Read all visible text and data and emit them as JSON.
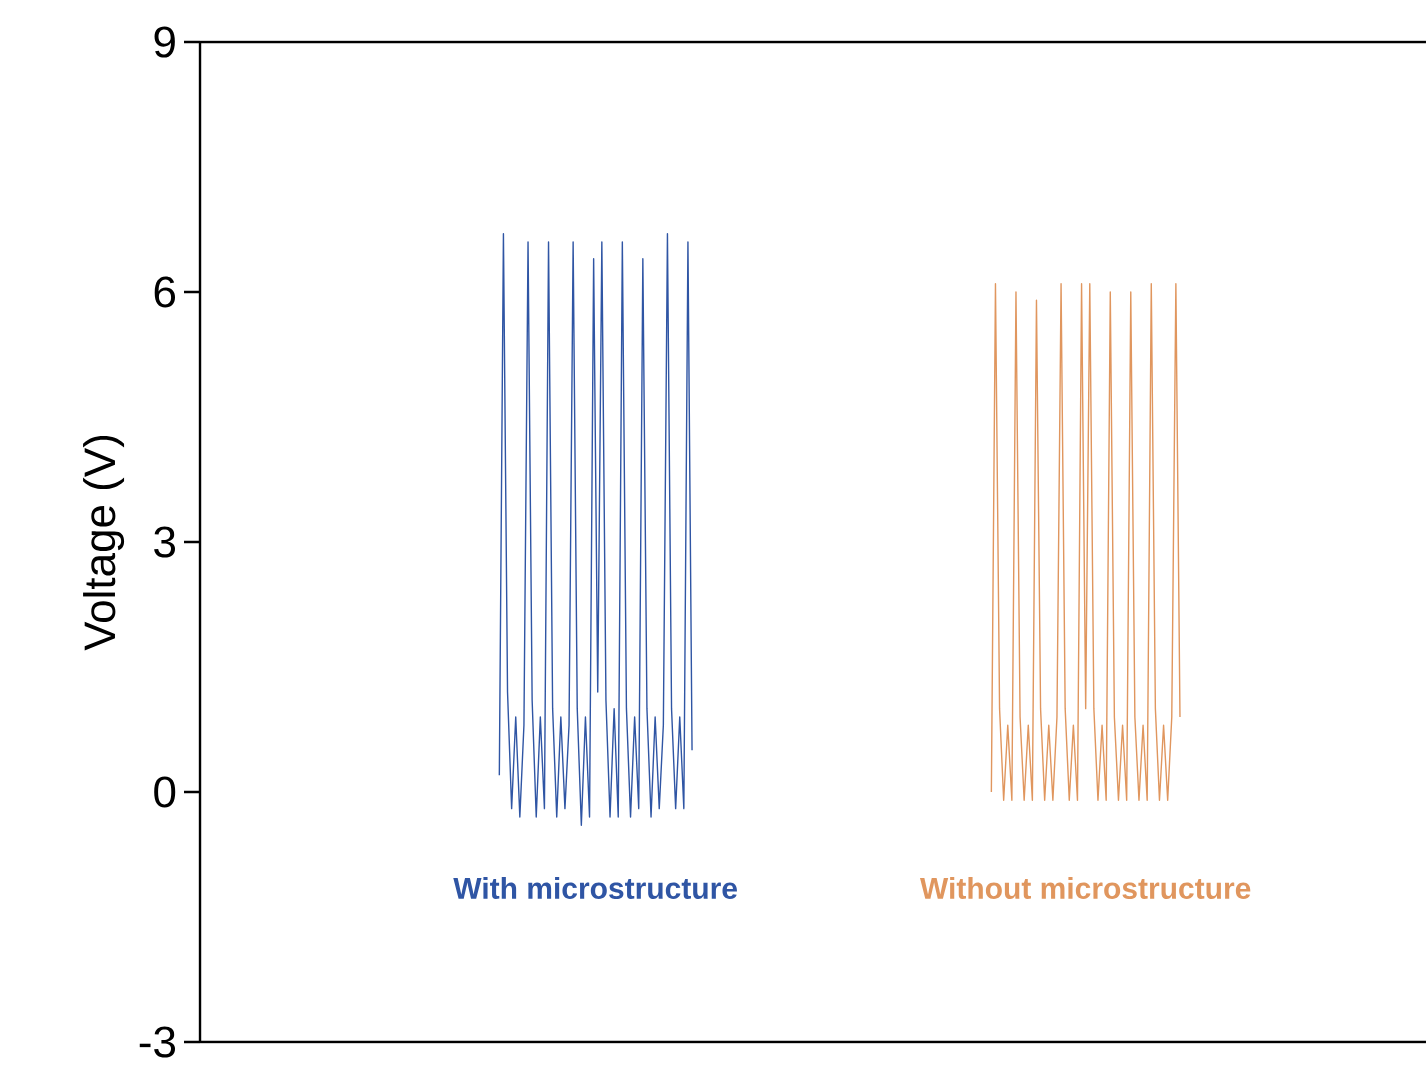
{
  "chart_data": {
    "type": "line",
    "ylabel": "Voltage (V)",
    "ylim": [
      -3,
      9
    ],
    "yticks": [
      -3,
      0,
      3,
      6,
      9
    ],
    "categories": [
      null,
      null,
      null,
      null,
      null,
      null,
      null,
      null,
      null,
      null,
      null,
      null,
      null,
      null,
      null,
      null,
      null,
      null,
      null,
      null,
      null,
      null,
      null,
      null,
      null,
      null,
      null,
      null,
      null,
      null,
      null,
      null,
      null,
      null,
      null,
      null,
      null,
      null,
      null,
      null,
      null,
      null,
      null,
      null,
      null,
      null,
      null,
      null,
      null,
      null,
      null,
      null,
      null,
      null,
      null,
      null,
      null,
      null,
      null,
      null,
      null,
      null,
      null,
      null,
      null,
      null,
      null,
      null,
      null,
      null,
      null,
      null,
      null,
      null,
      null,
      null,
      null,
      null,
      null,
      null,
      null,
      null,
      null,
      null,
      null,
      null,
      null,
      null,
      null,
      null,
      null,
      null,
      null,
      null,
      null,
      null,
      null,
      null,
      null,
      null,
      null,
      null,
      null,
      null,
      null,
      null,
      null,
      null,
      null,
      null,
      null,
      null,
      null,
      null,
      null,
      null,
      null,
      null,
      null,
      null,
      null,
      null,
      null,
      null,
      null,
      null,
      null,
      null,
      null,
      null,
      null,
      null,
      null,
      null,
      null,
      null,
      null,
      null,
      null,
      null,
      null,
      null,
      null,
      null,
      null,
      null,
      null,
      null,
      null,
      null,
      null,
      null,
      null,
      null,
      null,
      null,
      null,
      null,
      null,
      null,
      null,
      null,
      null,
      null,
      null,
      null,
      null,
      null,
      null,
      null,
      null,
      null,
      null,
      null,
      null,
      null,
      null,
      null,
      null,
      null,
      null,
      null,
      null,
      null,
      null,
      null,
      null,
      null,
      null,
      null,
      null,
      null,
      null,
      null,
      null,
      null,
      null,
      null,
      null,
      null,
      null,
      null,
      null,
      null,
      null,
      null,
      null,
      null,
      null,
      null,
      null,
      null,
      null,
      null,
      null,
      null,
      null,
      null,
      null,
      null,
      null,
      null,
      null,
      null,
      null,
      null,
      null,
      null,
      null,
      null,
      null,
      null,
      null,
      null,
      null,
      null,
      null,
      null,
      null,
      null,
      null,
      null,
      null,
      null,
      null,
      null,
      null,
      null,
      null,
      null,
      null,
      null,
      null,
      null,
      null,
      null,
      null,
      null,
      null,
      null,
      null,
      null,
      null,
      null,
      null,
      null,
      null,
      null,
      null,
      null,
      null,
      null,
      null,
      null,
      null,
      null,
      null,
      null,
      null,
      null,
      null,
      null,
      null,
      null,
      null,
      null,
      null,
      null,
      null,
      null,
      null,
      null,
      null,
      null,
      null,
      null,
      null,
      null,
      null,
      null
    ],
    "series": [
      {
        "name": "With microstructure",
        "color": "#2f55a4",
        "values": [
          null,
          null,
          null,
          null,
          null,
          null,
          null,
          null,
          null,
          null,
          null,
          null,
          null,
          null,
          null,
          null,
          null,
          null,
          null,
          null,
          null,
          null,
          null,
          null,
          null,
          null,
          null,
          null,
          null,
          null,
          null,
          null,
          null,
          null,
          null,
          null,
          null,
          null,
          null,
          null,
          null,
          null,
          null,
          null,
          null,
          null,
          null,
          null,
          null,
          null,
          null,
          null,
          null,
          null,
          null,
          null,
          null,
          null,
          null,
          null,
          null,
          null,
          null,
          null,
          null,
          null,
          null,
          null,
          null,
          null,
          null,
          null,
          null,
          0.2,
          6.7,
          1.2,
          -0.2,
          0.9,
          -0.3,
          0.8,
          6.6,
          1.1,
          -0.3,
          0.9,
          -0.2,
          6.6,
          1.0,
          -0.3,
          0.9,
          -0.2,
          0.8,
          6.6,
          1.0,
          -0.4,
          0.9,
          -0.3,
          6.4,
          1.2,
          6.6,
          1.1,
          -0.3,
          1.0,
          -0.3,
          6.6,
          1.0,
          -0.3,
          0.9,
          -0.2,
          6.4,
          1.0,
          -0.3,
          0.9,
          -0.2,
          0.8,
          6.7,
          1.0,
          -0.2,
          0.9,
          -0.2,
          6.6,
          0.5,
          null,
          null,
          null,
          null,
          null,
          null,
          null,
          null,
          null,
          null,
          null,
          null,
          null,
          null,
          null,
          null,
          null,
          null,
          null,
          null,
          null,
          null,
          null,
          null,
          null,
          null,
          null,
          null,
          null,
          null,
          null,
          null,
          null,
          null,
          null,
          null,
          null,
          null,
          null,
          null,
          null,
          null,
          null,
          null,
          null,
          null,
          null,
          null,
          null,
          null,
          null,
          null,
          null,
          null,
          null,
          null,
          null,
          null,
          null,
          null,
          null,
          null,
          null,
          null,
          null,
          null,
          null,
          null,
          null,
          null,
          null,
          null,
          null,
          null,
          null,
          null,
          null,
          null,
          null,
          null,
          null,
          null,
          null,
          null,
          null,
          null,
          null,
          null,
          null,
          null,
          null,
          null,
          null,
          null,
          null,
          null,
          null,
          null,
          null,
          null,
          null,
          null,
          null,
          null,
          null,
          null,
          null,
          null,
          null,
          null,
          null,
          null,
          null,
          null,
          null,
          null,
          null,
          null,
          null,
          null,
          null,
          null,
          null,
          null,
          null,
          null,
          null,
          null,
          null,
          null,
          null,
          null,
          null,
          null,
          null,
          null,
          null,
          null,
          null,
          null,
          null,
          null,
          null,
          null,
          null,
          null,
          null,
          null,
          null,
          null,
          null,
          null,
          null,
          null,
          null,
          null,
          null,
          null,
          null,
          null,
          null,
          null,
          null,
          null,
          null,
          null,
          null,
          null,
          null,
          null,
          null,
          null,
          null,
          null,
          null,
          null,
          null,
          null,
          null
        ]
      },
      {
        "name": "Without microstructure",
        "color": "#e0965e",
        "values": [
          null,
          null,
          null,
          null,
          null,
          null,
          null,
          null,
          null,
          null,
          null,
          null,
          null,
          null,
          null,
          null,
          null,
          null,
          null,
          null,
          null,
          null,
          null,
          null,
          null,
          null,
          null,
          null,
          null,
          null,
          null,
          null,
          null,
          null,
          null,
          null,
          null,
          null,
          null,
          null,
          null,
          null,
          null,
          null,
          null,
          null,
          null,
          null,
          null,
          null,
          null,
          null,
          null,
          null,
          null,
          null,
          null,
          null,
          null,
          null,
          null,
          null,
          null,
          null,
          null,
          null,
          null,
          null,
          null,
          null,
          null,
          null,
          null,
          null,
          null,
          null,
          null,
          null,
          null,
          null,
          null,
          null,
          null,
          null,
          null,
          null,
          null,
          null,
          null,
          null,
          null,
          null,
          null,
          null,
          null,
          null,
          null,
          null,
          null,
          null,
          null,
          null,
          null,
          null,
          null,
          null,
          null,
          null,
          null,
          null,
          null,
          null,
          null,
          null,
          null,
          null,
          null,
          null,
          null,
          null,
          null,
          null,
          null,
          null,
          null,
          null,
          null,
          null,
          null,
          null,
          null,
          null,
          null,
          null,
          null,
          null,
          null,
          null,
          null,
          null,
          null,
          null,
          null,
          null,
          null,
          null,
          null,
          null,
          null,
          null,
          null,
          null,
          null,
          null,
          null,
          null,
          null,
          null,
          null,
          null,
          null,
          null,
          null,
          null,
          null,
          null,
          null,
          null,
          null,
          null,
          null,
          null,
          null,
          null,
          null,
          null,
          null,
          null,
          null,
          null,
          null,
          null,
          null,
          null,
          null,
          null,
          null,
          null,
          null,
          null,
          null,
          null,
          null,
          0.0,
          6.1,
          1.0,
          -0.1,
          0.8,
          -0.1,
          6.0,
          0.9,
          -0.1,
          0.8,
          -0.1,
          5.9,
          1.0,
          -0.1,
          0.8,
          -0.1,
          0.9,
          6.1,
          1.0,
          -0.1,
          0.8,
          -0.1,
          6.1,
          1.0,
          6.1,
          1.0,
          -0.1,
          0.8,
          -0.1,
          6.0,
          0.9,
          -0.1,
          0.8,
          -0.1,
          6.0,
          0.9,
          -0.1,
          0.8,
          -0.1,
          6.1,
          1.0,
          -0.1,
          0.8,
          -0.1,
          0.9,
          6.1,
          0.9,
          null,
          null,
          null,
          null,
          null,
          null,
          null,
          null,
          null,
          null,
          null,
          null,
          null,
          null,
          null,
          null,
          null,
          null,
          null,
          null,
          null,
          null,
          null,
          null,
          null,
          null,
          null,
          null,
          null,
          null,
          null,
          null,
          null,
          null,
          null,
          null,
          null,
          null,
          null,
          null,
          null,
          null,
          null,
          null,
          null,
          null,
          null,
          null,
          null,
          null,
          null,
          null,
          null,
          null,
          null,
          null,
          null,
          null,
          null,
          null
        ]
      }
    ]
  }
}
